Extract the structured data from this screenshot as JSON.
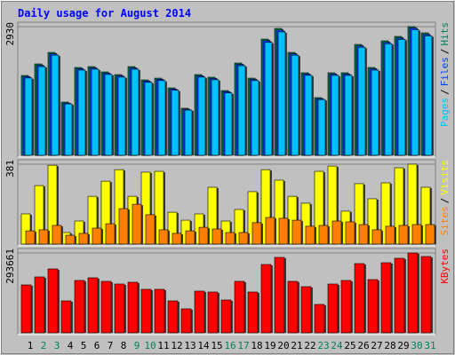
{
  "legend_separator": "/",
  "chart_data": [
    {
      "type": "bar",
      "title": "Daily usage for August 2014",
      "ylim": [
        0,
        2930
      ],
      "yticks": [
        2930
      ],
      "series": [
        {
          "name": "Pages",
          "color": "#00c0ff",
          "values": [
            1760,
            2020,
            2280,
            1170,
            1940,
            1960,
            1840,
            1780,
            1960,
            1660,
            1700,
            1480,
            1030,
            1780,
            1720,
            1420,
            2040,
            1700,
            2570,
            2810,
            2280,
            1820,
            1270,
            1820,
            1820,
            2460,
            1940,
            2540,
            2640,
            2860,
            2720
          ]
        },
        {
          "name": "Files",
          "color": "#0040ff",
          "values": [
            1790,
            2050,
            2310,
            1190,
            1970,
            1990,
            1870,
            1810,
            1990,
            1690,
            1730,
            1510,
            1050,
            1810,
            1750,
            1450,
            2070,
            1730,
            2610,
            2850,
            2310,
            1850,
            1290,
            1850,
            1850,
            2490,
            1970,
            2570,
            2670,
            2900,
            2750
          ]
        },
        {
          "name": "Hits",
          "color": "#00805c",
          "values": [
            1818,
            2081,
            2343,
            1212,
            2000,
            2020,
            1899,
            1838,
            2020,
            1717,
            1757,
            1535,
            1071,
            1838,
            1778,
            1475,
            2101,
            1757,
            2646,
            2889,
            2343,
            1879,
            1313,
            1879,
            1879,
            2525,
            2000,
            2606,
            2707,
            2930,
            2788
          ]
        }
      ]
    },
    {
      "type": "bar",
      "ylim": [
        0,
        381
      ],
      "yticks": [
        381
      ],
      "series": [
        {
          "name": "Sites",
          "color": "#ff8000",
          "values": [
            63,
            68,
            89,
            42,
            51,
            76,
            97,
            169,
            190,
            140,
            68,
            51,
            63,
            80,
            72,
            55,
            55,
            102,
            127,
            123,
            114,
            85,
            89,
            110,
            106,
            93,
            68,
            85,
            89,
            93,
            93
          ]
        },
        {
          "name": "Visits",
          "color": "#ffff00",
          "values": [
            144,
            279,
            376,
            55,
            110,
            228,
            300,
            355,
            228,
            343,
            347,
            152,
            114,
            144,
            271,
            110,
            165,
            250,
            355,
            305,
            228,
            195,
            347,
            372,
            157,
            288,
            216,
            292,
            364,
            381,
            271
          ]
        }
      ]
    },
    {
      "type": "bar",
      "ylim": [
        0,
        293661
      ],
      "yticks": [
        293661
      ],
      "categories": [
        "1",
        "2",
        "3",
        "4",
        "5",
        "6",
        "7",
        "8",
        "9",
        "10",
        "11",
        "12",
        "13",
        "14",
        "15",
        "16",
        "17",
        "18",
        "19",
        "20",
        "21",
        "22",
        "23",
        "24",
        "25",
        "26",
        "27",
        "28",
        "29",
        "30",
        "31"
      ],
      "category_colors": [
        "#000000",
        "#00805c",
        "#00805c",
        "#000000",
        "#000000",
        "#000000",
        "#000000",
        "#000000",
        "#00805c",
        "#00805c",
        "#000000",
        "#000000",
        "#000000",
        "#000000",
        "#000000",
        "#00805c",
        "#00805c",
        "#000000",
        "#000000",
        "#000000",
        "#000000",
        "#000000",
        "#00805c",
        "#00805c",
        "#000000",
        "#000000",
        "#000000",
        "#000000",
        "#000000",
        "#00805c",
        "#00805c"
      ],
      "series": [
        {
          "name": "KBytes",
          "color": "#ff0000",
          "values": [
            176202,
            205569,
            234936,
            117468,
            192517,
            202306,
            189254,
            179465,
            185991,
            159887,
            159887,
            117468,
            88101,
            153361,
            150098,
            120731,
            189254,
            150098,
            251251,
            277355,
            189254,
            169676,
            104416,
            179465,
            192517,
            254514,
            195780,
            257777,
            274092,
            293661,
            280618
          ]
        }
      ]
    }
  ]
}
